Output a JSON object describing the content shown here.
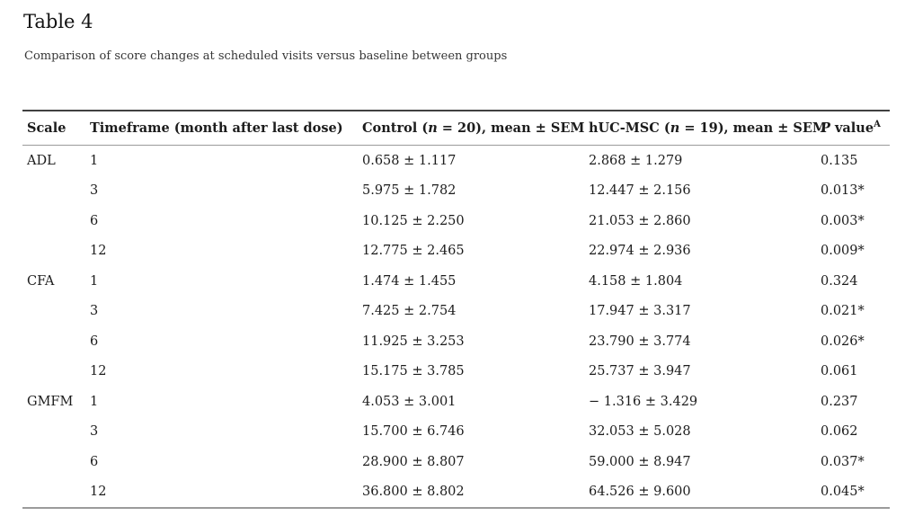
{
  "page": {
    "title": "Table 4",
    "caption": "Comparison of score changes at scheduled visits versus baseline between groups"
  },
  "colors": {
    "title": "#111111",
    "caption": "#363636",
    "text": "#1c1c1c",
    "border_top": "#404040",
    "border_inner": "#9b9b9b"
  },
  "table": {
    "columns": {
      "scale": {
        "label": "Scale"
      },
      "timeframe": {
        "label": "Timeframe (month after last dose)"
      },
      "control": {
        "pre": "Control (",
        "italic": "n",
        "post": " = 20), mean ± SEM"
      },
      "hucmsc": {
        "pre": "hUC-MSC (",
        "italic": "n",
        "post": " = 19), mean ± SEM"
      },
      "pvalue": {
        "italic": "P",
        "post": " value",
        "sup": "A"
      }
    },
    "rows": [
      {
        "scale": "ADL",
        "timeframe": "1",
        "control": "0.658 ± 1.117",
        "hucmsc": "2.868 ± 1.279",
        "pvalue": "0.135"
      },
      {
        "scale": "",
        "timeframe": "3",
        "control": "5.975 ± 1.782",
        "hucmsc": "12.447 ± 2.156",
        "pvalue": "0.013*"
      },
      {
        "scale": "",
        "timeframe": "6",
        "control": "10.125 ± 2.250",
        "hucmsc": "21.053 ± 2.860",
        "pvalue": "0.003*"
      },
      {
        "scale": "",
        "timeframe": "12",
        "control": "12.775 ± 2.465",
        "hucmsc": "22.974 ± 2.936",
        "pvalue": "0.009*"
      },
      {
        "scale": "CFA",
        "timeframe": "1",
        "control": "1.474 ± 1.455",
        "hucmsc": "4.158 ± 1.804",
        "pvalue": "0.324"
      },
      {
        "scale": "",
        "timeframe": "3",
        "control": "7.425 ± 2.754",
        "hucmsc": "17.947 ± 3.317",
        "pvalue": "0.021*"
      },
      {
        "scale": "",
        "timeframe": "6",
        "control": "11.925 ± 3.253",
        "hucmsc": "23.790 ± 3.774",
        "pvalue": "0.026*"
      },
      {
        "scale": "",
        "timeframe": "12",
        "control": "15.175 ± 3.785",
        "hucmsc": "25.737 ± 3.947",
        "pvalue": "0.061"
      },
      {
        "scale": "GMFM",
        "timeframe": "1",
        "control": "4.053 ± 3.001",
        "hucmsc": "− 1.316 ± 3.429",
        "pvalue": "0.237"
      },
      {
        "scale": "",
        "timeframe": "3",
        "control": "15.700 ± 6.746",
        "hucmsc": "32.053 ± 5.028",
        "pvalue": "0.062"
      },
      {
        "scale": "",
        "timeframe": "6",
        "control": "28.900 ± 8.807",
        "hucmsc": "59.000 ± 8.947",
        "pvalue": "0.037*"
      },
      {
        "scale": "",
        "timeframe": "12",
        "control": "36.800 ± 8.802",
        "hucmsc": "64.526 ± 9.600",
        "pvalue": "0.045*"
      }
    ]
  }
}
